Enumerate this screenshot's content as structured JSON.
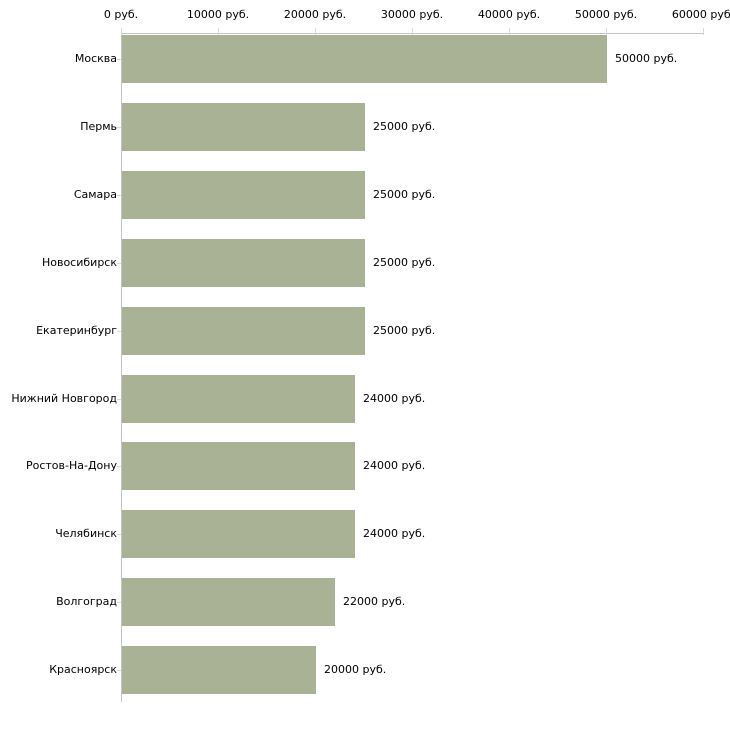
{
  "chart_data": {
    "type": "bar",
    "orientation": "horizontal",
    "title": "",
    "xlabel": "",
    "ylabel": "",
    "unit": "руб.",
    "xlim": [
      0,
      60000
    ],
    "axis_position": "top",
    "grid": false,
    "legend": false,
    "x_ticks": [
      0,
      10000,
      20000,
      30000,
      40000,
      50000,
      60000
    ],
    "x_tick_labels": [
      "0 руб.",
      "10000 руб.",
      "20000 руб.",
      "30000 руб.",
      "40000 руб.",
      "50000 руб.",
      "60000 руб."
    ],
    "categories": [
      "Москва",
      "Пермь",
      "Самара",
      "Новосибирск",
      "Екатеринбург",
      "Нижний Новгород",
      "Ростов-На-Дону",
      "Челябинск",
      "Волгоград",
      "Красноярск"
    ],
    "values": [
      50000,
      25000,
      25000,
      25000,
      25000,
      24000,
      24000,
      24000,
      22000,
      20000
    ],
    "value_labels": [
      "50000 руб.",
      "25000 руб.",
      "25000 руб.",
      "25000 руб.",
      "25000 руб.",
      "24000 руб.",
      "24000 руб.",
      "24000 руб.",
      "22000 руб.",
      "20000 руб."
    ]
  },
  "colors": {
    "bar_fill": "#a9b294",
    "axis_line": "#c4c4c4",
    "tick_mark": "#dadcc6",
    "label_text": "#000000",
    "background": "#ffffff"
  }
}
